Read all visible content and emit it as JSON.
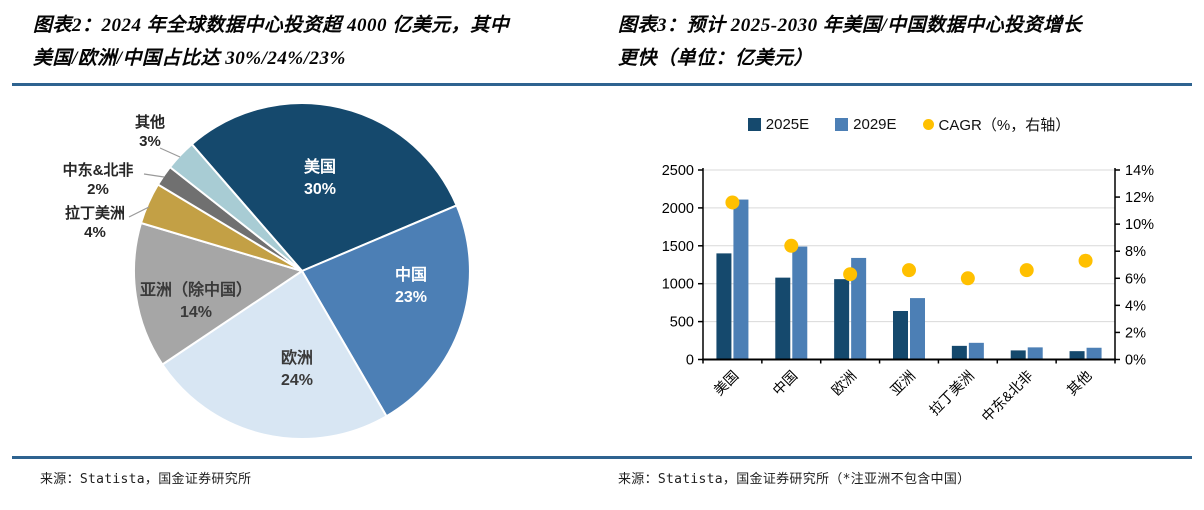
{
  "figures": [
    {
      "title_line1": "图表2：2024 年全球数据中心投资超 4000 亿美元，其中",
      "title_line2": "美国/欧洲/中国占比达 30%/24%/23%",
      "source": "来源：Statista，国金证券研究所"
    },
    {
      "title_line1": "图表3：预计 2025-2030 年美国/中国数据中心投资增长",
      "title_line2": "更快（单位：亿美元）",
      "source": "来源：Statista，国金证券研究所（*注亚洲不包含中国）"
    }
  ],
  "chart_data": [
    {
      "type": "pie",
      "title": "2024 年全球数据中心投资地区占比",
      "labels": [
        "美国",
        "中国",
        "欧洲",
        "亚洲（除中国）",
        "拉丁美洲",
        "中东&北非",
        "其他"
      ],
      "values": [
        30,
        23,
        24,
        14,
        4,
        2,
        3
      ],
      "unit": "%",
      "colors": [
        "#15496D",
        "#4C7FB5",
        "#D8E6F3",
        "#A6A6A6",
        "#C3A045",
        "#707070",
        "#A8CCD4"
      ],
      "start_angle_deg": -41,
      "direction": "clockwise",
      "label_style": "name + percent, large slices inside, small slices outside with leader lines"
    },
    {
      "type": "bar",
      "categories": [
        "美国",
        "中国",
        "欧洲",
        "亚洲",
        "拉丁美洲",
        "中东&北非",
        "其他"
      ],
      "series": [
        {
          "name": "2025E",
          "type": "bar",
          "axis": "left",
          "color": "#15496D",
          "values": [
            1400,
            1080,
            1060,
            640,
            180,
            120,
            110
          ]
        },
        {
          "name": "2029E",
          "type": "bar",
          "axis": "left",
          "color": "#4C7FB5",
          "values": [
            2110,
            1490,
            1340,
            810,
            220,
            160,
            155
          ]
        },
        {
          "name": "CAGR（%，右轴）",
          "type": "scatter",
          "axis": "right",
          "color": "#FFC000",
          "values": [
            11.6,
            8.4,
            6.3,
            6.6,
            6.0,
            6.6,
            7.3
          ]
        }
      ],
      "y_left": {
        "min": 0,
        "max": 2500,
        "step": 500,
        "ticks": [
          "0",
          "500",
          "1000",
          "1500",
          "2000",
          "2500"
        ]
      },
      "y_right": {
        "min": 0,
        "max": 14,
        "step": 2,
        "suffix": "%",
        "ticks": [
          "0%",
          "2%",
          "4%",
          "6%",
          "8%",
          "10%",
          "12%",
          "14%"
        ]
      },
      "grid": true,
      "legend_position": "top",
      "x_label_rotation_deg": -45
    }
  ],
  "accent_rule_color": "#2E6390"
}
